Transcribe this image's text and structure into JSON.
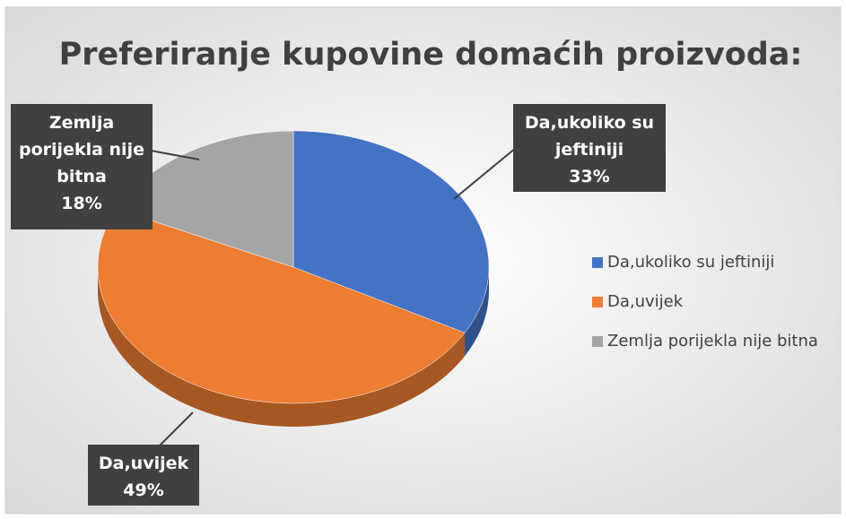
{
  "chart_data": {
    "type": "pie",
    "title": "Preferiranje kupovine domaćih proizvoda:",
    "categories": [
      "Da,ukoliko su jeftiniji",
      "Da,uvijek",
      "Zemlja porijekla nije bitna"
    ],
    "values": [
      33,
      49,
      18
    ],
    "value_labels": [
      "33%",
      "49%",
      "18%"
    ],
    "colors": [
      "#4472c4",
      "#ed7d31",
      "#a5a5a5"
    ],
    "legend": "right"
  }
}
